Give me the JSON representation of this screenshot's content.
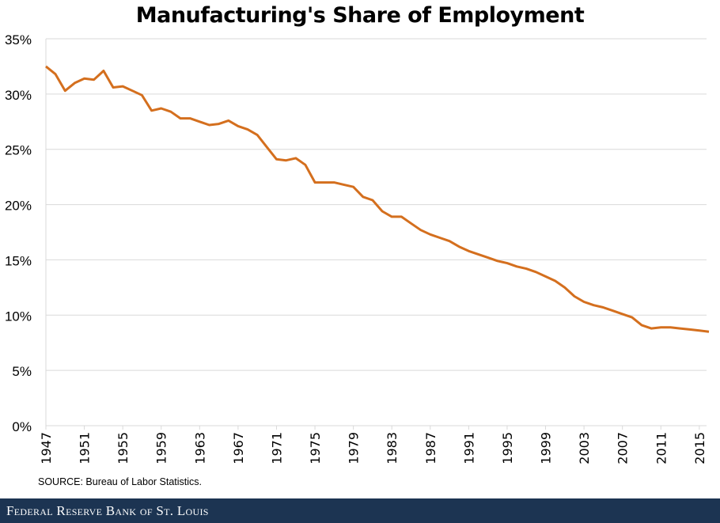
{
  "chart_data": {
    "type": "line",
    "title": "Manufacturing's Share of Employment",
    "xlabel": "",
    "ylabel": "",
    "ylim": [
      0,
      35
    ],
    "yticks": [
      "0%",
      "5%",
      "10%",
      "15%",
      "20%",
      "25%",
      "30%",
      "35%"
    ],
    "xtick_labels": [
      "1947",
      "1951",
      "1955",
      "1959",
      "1963",
      "1967",
      "1971",
      "1975",
      "1979",
      "1983",
      "1987",
      "1991",
      "1995",
      "1999",
      "2003",
      "2007",
      "2011",
      "2015"
    ],
    "grid": "horizontal",
    "line_color": "#d46f1e",
    "x": [
      1947,
      1948,
      1949,
      1950,
      1951,
      1952,
      1953,
      1954,
      1955,
      1956,
      1957,
      1958,
      1959,
      1960,
      1961,
      1962,
      1963,
      1964,
      1965,
      1966,
      1967,
      1968,
      1969,
      1970,
      1971,
      1972,
      1973,
      1974,
      1975,
      1976,
      1977,
      1978,
      1979,
      1980,
      1981,
      1982,
      1983,
      1984,
      1985,
      1986,
      1987,
      1988,
      1989,
      1990,
      1991,
      1992,
      1993,
      1994,
      1995,
      1996,
      1997,
      1998,
      1999,
      2000,
      2001,
      2002,
      2003,
      2004,
      2005,
      2006,
      2007,
      2008,
      2009,
      2010,
      2011,
      2012,
      2013,
      2014,
      2015,
      2016
    ],
    "values": [
      32.5,
      31.8,
      30.3,
      31.0,
      31.4,
      31.3,
      32.1,
      30.6,
      30.7,
      30.3,
      29.9,
      28.5,
      28.7,
      28.4,
      27.8,
      27.8,
      27.5,
      27.2,
      27.3,
      27.6,
      27.1,
      26.8,
      26.3,
      25.2,
      24.1,
      24.0,
      24.2,
      23.6,
      22.0,
      22.0,
      22.0,
      21.8,
      21.6,
      20.7,
      20.4,
      19.4,
      18.9,
      18.9,
      18.3,
      17.7,
      17.3,
      17.0,
      16.7,
      16.2,
      15.8,
      15.5,
      15.2,
      14.9,
      14.7,
      14.4,
      14.2,
      13.9,
      13.5,
      13.1,
      12.5,
      11.7,
      11.2,
      10.9,
      10.7,
      10.4,
      10.1,
      9.8,
      9.1,
      8.8,
      8.9,
      8.9,
      8.8,
      8.7,
      8.6,
      8.5
    ]
  },
  "source": "SOURCE: Bureau of Labor Statistics.",
  "footer": {
    "logo_text": "Federal Reserve Bank of St. Louis",
    "color": "#1c3452"
  }
}
